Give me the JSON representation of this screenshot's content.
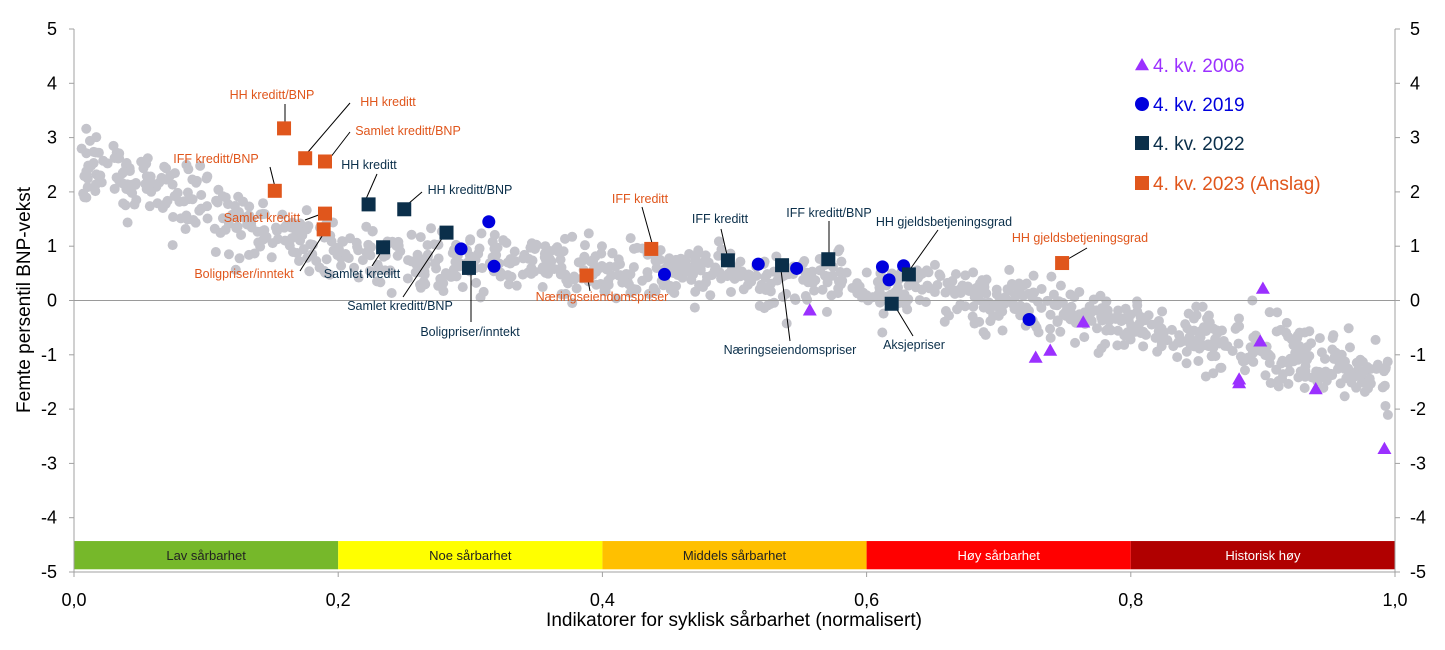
{
  "chart_data": {
    "type": "scatter",
    "title": "",
    "xlabel": "Indikatorer for syklisk sårbarhet (normalisert)",
    "ylabel": "Femte persentil BNP-vekst",
    "xlim": [
      0,
      1
    ],
    "ylim": [
      -5,
      5
    ],
    "x_ticks": [
      "0,0",
      "0,2",
      "0,4",
      "0,6",
      "0,8",
      "1,0"
    ],
    "y_ticks": [
      "-5",
      "-4",
      "-3",
      "-2",
      "-1",
      "0",
      "1",
      "2",
      "3",
      "4",
      "5"
    ],
    "grid": false,
    "legend_position": "top-right",
    "colors": {
      "background_points": "#c4c4cb",
      "q4_2006": "#9b30ff",
      "q4_2019": "#0000dd",
      "q4_2022": "#0b2f4a",
      "q4_2023": "#e0561c"
    },
    "bands": [
      {
        "label": "Lav sårbarhet",
        "from": 0.0,
        "to": 0.2,
        "color": "#76b82a",
        "text_color": "#222222"
      },
      {
        "label": "Noe sårbarhet",
        "from": 0.2,
        "to": 0.4,
        "color": "#ffff00",
        "text_color": "#222222"
      },
      {
        "label": "Middels sårbarhet",
        "from": 0.4,
        "to": 0.6,
        "color": "#ffc000",
        "text_color": "#222222"
      },
      {
        "label": "Høy sårbarhet",
        "from": 0.6,
        "to": 0.8,
        "color": "#ff0000",
        "text_color": "#ffffff"
      },
      {
        "label": "Historisk høy",
        "from": 0.8,
        "to": 1.0,
        "color": "#b00000",
        "text_color": "#ffffff"
      }
    ],
    "series": [
      {
        "name": "4. kv. 2006",
        "marker": "triangle",
        "color": "#9b30ff",
        "points": [
          [
            0.557,
            -0.18
          ],
          [
            0.728,
            -1.05
          ],
          [
            0.739,
            -0.92
          ],
          [
            0.764,
            -0.4
          ],
          [
            0.882,
            -1.45
          ],
          [
            0.882,
            -1.52
          ],
          [
            0.898,
            -0.75
          ],
          [
            0.9,
            0.22
          ],
          [
            0.94,
            -1.63
          ],
          [
            0.992,
            -2.73
          ]
        ]
      },
      {
        "name": "4. kv. 2019",
        "marker": "circle",
        "color": "#0000dd",
        "points": [
          [
            0.293,
            0.95
          ],
          [
            0.314,
            1.45
          ],
          [
            0.318,
            0.63
          ],
          [
            0.447,
            0.48
          ],
          [
            0.518,
            0.67
          ],
          [
            0.547,
            0.59
          ],
          [
            0.612,
            0.62
          ],
          [
            0.617,
            0.38
          ],
          [
            0.628,
            0.64
          ],
          [
            0.723,
            -0.35
          ]
        ]
      },
      {
        "name": "4. kv. 2022",
        "marker": "square",
        "color": "#0b2f4a",
        "points": [
          {
            "x": 0.223,
            "y": 1.77,
            "label": "HH kreditt"
          },
          {
            "x": 0.25,
            "y": 1.68,
            "label": "HH kreditt/BNP"
          },
          {
            "x": 0.234,
            "y": 0.98,
            "label": "Samlet kreditt"
          },
          {
            "x": 0.282,
            "y": 1.25,
            "label": "Samlet kreditt/BNP"
          },
          {
            "x": 0.299,
            "y": 0.6,
            "label": "Boligpriser/inntekt"
          },
          {
            "x": 0.495,
            "y": 0.74,
            "label": "IFF kreditt"
          },
          {
            "x": 0.536,
            "y": 0.65,
            "label": "Næringseiendomspriser"
          },
          {
            "x": 0.571,
            "y": 0.76,
            "label": "IFF kreditt/BNP"
          },
          {
            "x": 0.619,
            "y": -0.06,
            "label": "Aksjepriser"
          },
          {
            "x": 0.632,
            "y": 0.48,
            "label": "HH gjeldsbetjeningsgrad"
          }
        ]
      },
      {
        "name": "4. kv. 2023 (Anslag)",
        "marker": "square",
        "color": "#e0561c",
        "points": [
          {
            "x": 0.159,
            "y": 3.17,
            "label": "HH kreditt/BNP"
          },
          {
            "x": 0.175,
            "y": 2.62,
            "label": "HH kreditt"
          },
          {
            "x": 0.19,
            "y": 2.56,
            "label": "Samlet kreditt/BNP"
          },
          {
            "x": 0.152,
            "y": 2.02,
            "label": "IFF kreditt/BNP"
          },
          {
            "x": 0.19,
            "y": 1.6,
            "label": "Samlet kreditt"
          },
          {
            "x": 0.189,
            "y": 1.31,
            "label": "Boligpriser/inntekt"
          },
          {
            "x": 0.388,
            "y": 0.46,
            "label": "Næringseiendomspriser"
          },
          {
            "x": 0.437,
            "y": 0.95,
            "label": "IFF kreditt"
          },
          {
            "x": 0.748,
            "y": 0.69,
            "label": "HH gjeldsbetjeningsgrad"
          }
        ]
      }
    ]
  }
}
